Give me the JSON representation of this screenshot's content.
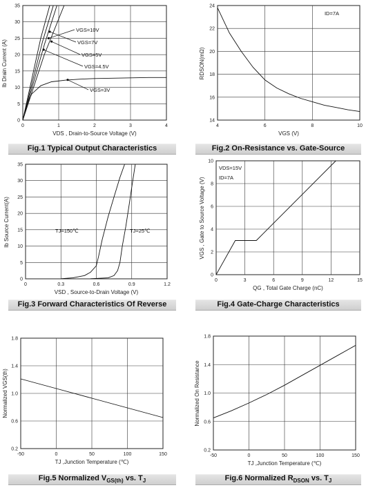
{
  "charts": [
    {
      "caption": "Fig.1 Typical Output Characteristics",
      "ylabel": "Ib Drain Current (A)",
      "xlabel": "VDS , Drain-to-Source Voltage (V)",
      "ylim": [
        0,
        35
      ],
      "xlim": [
        0,
        4
      ],
      "yticks": [
        "0",
        "5",
        "10",
        "15",
        "20",
        "25",
        "30",
        "35"
      ],
      "xticks": [
        "0",
        "1",
        "2",
        "3",
        "4"
      ],
      "annotations": [
        "VGS=10V",
        "VGS=7V",
        "VGS=5V",
        "VGS=4.5V",
        "VGS=3V"
      ]
    },
    {
      "caption": "Fig.2 On-Resistance vs. Gate-Source",
      "ylabel": "RDSON(mΩ)",
      "xlabel": "VGS (V)",
      "ylim": [
        14,
        24
      ],
      "xlim": [
        4,
        10
      ],
      "yticks": [
        "14",
        "16",
        "18",
        "20",
        "22",
        "24"
      ],
      "xticks": [
        "4",
        "6",
        "8",
        "10"
      ],
      "annotations": [
        "ID=7A"
      ]
    },
    {
      "caption": "Fig.3 Forward Characteristics Of Reverse",
      "ylabel": "Ib Source Current(A)",
      "xlabel": "VSD , Source-to-Drain Voltage (V)",
      "ylim": [
        0,
        35
      ],
      "xlim": [
        0,
        1.2
      ],
      "yticks": [
        "0",
        "5",
        "10",
        "15",
        "20",
        "25",
        "30",
        "35"
      ],
      "xticks": [
        "0",
        "0.3",
        "0.6",
        "0.9",
        "1.2"
      ],
      "annotations": [
        "TJ=150℃",
        "TJ=25℃"
      ]
    },
    {
      "caption": "Fig.4 Gate-Charge Characteristics",
      "ylabel": "VGS , Gate to Source Voltage (V)",
      "xlabel": "QG , Total Gate Charge (nC)",
      "ylim": [
        0,
        10
      ],
      "xlim": [
        0,
        15
      ],
      "yticks": [
        "0",
        "2",
        "4",
        "6",
        "8",
        "10"
      ],
      "xticks": [
        "0",
        "3",
        "6",
        "9",
        "12",
        "15"
      ],
      "annotations": [
        "VDS=15V",
        "ID=7A"
      ]
    },
    {
      "caption": "Fig.5 Normalized VGS(th) vs. TJ",
      "ylabel": "Normalized VGS(th)",
      "xlabel": "TJ ,Junction Temperature (℃)",
      "ylim": [
        0.2,
        1.8
      ],
      "xlim": [
        -50,
        150
      ],
      "yticks": [
        "0.2",
        "0.6",
        "1.0",
        "1.4",
        "1.8"
      ],
      "xticks": [
        "-50",
        "0",
        "50",
        "100",
        "150"
      ],
      "annotations": []
    },
    {
      "caption": "Fig.6 Normalized RDSON vs. TJ",
      "ylabel": "Normalized On Resistance",
      "xlabel": "TJ ,Junction Temperature (℃)",
      "ylim": [
        0.2,
        1.8
      ],
      "xlim": [
        -50,
        150
      ],
      "yticks": [
        "0.2",
        "0.6",
        "1.0",
        "1.4",
        "1.8"
      ],
      "xticks": [
        "-50",
        "0",
        "50",
        "100",
        "150"
      ],
      "annotations": []
    }
  ],
  "chart_data": [
    {
      "type": "line",
      "xlim": [
        0,
        4
      ],
      "ylim": [
        0,
        35
      ],
      "grid": true,
      "series": [
        {
          "name": "VGS=10V",
          "x": [
            0,
            0.5,
            0.75
          ],
          "y": [
            0,
            25,
            35
          ]
        },
        {
          "name": "VGS=7V",
          "x": [
            0,
            0.55,
            0.85
          ],
          "y": [
            0,
            24,
            35
          ]
        },
        {
          "name": "VGS=5V",
          "x": [
            0,
            0.6,
            0.95
          ],
          "y": [
            0,
            23,
            35
          ]
        },
        {
          "name": "VGS=4.5V",
          "x": [
            0,
            0.6,
            1.15
          ],
          "y": [
            0,
            20,
            35
          ]
        },
        {
          "name": "VGS=3V",
          "x": [
            0,
            0.1,
            0.25,
            0.5,
            0.8,
            1.2,
            1.6,
            2.0,
            2.5,
            3.0,
            3.5,
            4.0
          ],
          "y": [
            0,
            4.5,
            8,
            10.5,
            11.7,
            12.2,
            12.5,
            12.7,
            12.8,
            12.9,
            13.0,
            13.0
          ]
        }
      ]
    },
    {
      "type": "line",
      "xlim": [
        4,
        10
      ],
      "ylim": [
        14,
        24
      ],
      "grid": true,
      "series": [
        {
          "name": "ID=7A",
          "x": [
            4,
            4.5,
            5,
            5.5,
            6,
            6.5,
            7,
            7.5,
            8,
            8.5,
            9,
            9.5,
            10
          ],
          "y": [
            23.8,
            21.6,
            20.0,
            18.6,
            17.5,
            16.8,
            16.3,
            15.9,
            15.6,
            15.3,
            15.1,
            14.9,
            14.75
          ]
        }
      ]
    },
    {
      "type": "line",
      "xlim": [
        0,
        1.2
      ],
      "ylim": [
        0,
        35
      ],
      "grid": true,
      "series": [
        {
          "name": "TJ=150℃",
          "x": [
            0.3,
            0.4,
            0.5,
            0.55,
            0.6,
            0.62,
            0.65,
            0.7,
            0.75,
            0.8,
            0.84
          ],
          "y": [
            0.05,
            0.3,
            1,
            2,
            4,
            7,
            12,
            19,
            25,
            31,
            35
          ]
        },
        {
          "name": "TJ=25℃",
          "x": [
            0.55,
            0.7,
            0.75,
            0.78,
            0.8,
            0.82,
            0.85,
            0.88,
            0.9,
            0.93
          ],
          "y": [
            0.05,
            0.3,
            1,
            2.5,
            5,
            10,
            16,
            23,
            28,
            35
          ]
        }
      ]
    },
    {
      "type": "line",
      "xlim": [
        0,
        15
      ],
      "ylim": [
        0,
        10
      ],
      "grid": true,
      "series": [
        {
          "name": "VDS=15V, ID=7A",
          "x": [
            0,
            2.0,
            4.2,
            12.5
          ],
          "y": [
            0,
            3.0,
            3.0,
            10.0
          ]
        }
      ]
    },
    {
      "type": "line",
      "xlim": [
        -50,
        150
      ],
      "ylim": [
        0.2,
        1.8
      ],
      "grid": true,
      "series": [
        {
          "name": "VGS(th)",
          "x": [
            -50,
            0,
            50,
            100,
            150
          ],
          "y": [
            1.21,
            1.07,
            0.93,
            0.79,
            0.65
          ]
        }
      ]
    },
    {
      "type": "line",
      "xlim": [
        -50,
        150
      ],
      "ylim": [
        0.2,
        1.8
      ],
      "grid": true,
      "series": [
        {
          "name": "RDSON",
          "x": [
            -50,
            -25,
            0,
            25,
            50,
            75,
            100,
            125,
            150
          ],
          "y": [
            0.65,
            0.75,
            0.86,
            0.98,
            1.11,
            1.25,
            1.39,
            1.53,
            1.67
          ]
        }
      ]
    }
  ]
}
